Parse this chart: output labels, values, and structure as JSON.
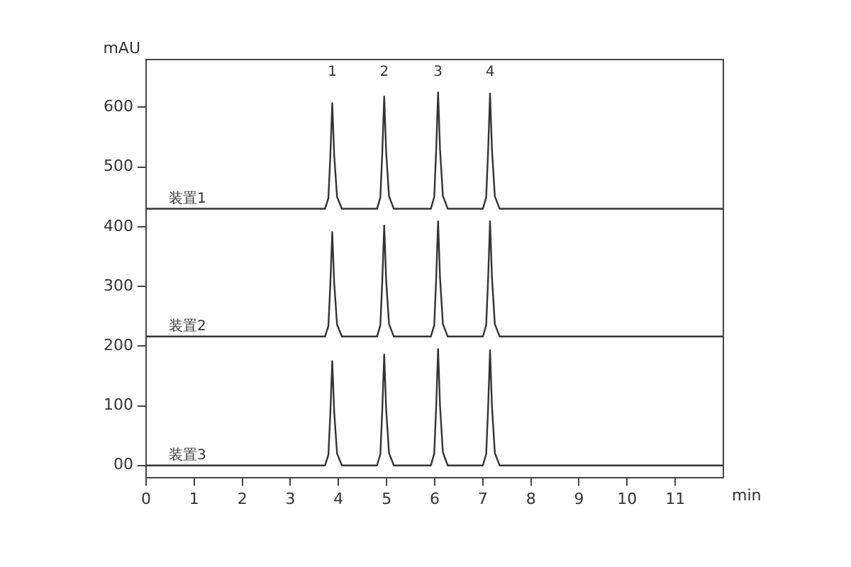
{
  "chart_data": {
    "type": "line",
    "xlabel": "min",
    "ylabel": "mAU",
    "xlim": [
      0,
      12
    ],
    "xticks": [
      0,
      1,
      2,
      3,
      4,
      5,
      6,
      7,
      8,
      9,
      10,
      11
    ],
    "ylim": [
      -20,
      680
    ],
    "yticks": [
      {
        "value": 0,
        "label": "00"
      },
      100,
      200,
      300,
      400,
      500,
      600
    ],
    "grid": false,
    "legend": false,
    "marker": "none",
    "line_style": "solid",
    "annotations": [
      "1",
      "2",
      "3",
      "4"
    ],
    "series": [
      {
        "name": "装置1",
        "color": "#333333",
        "x": [
          0,
          3.72,
          3.79,
          3.83,
          3.87,
          3.91,
          3.97,
          4.07,
          4.8,
          4.87,
          4.91,
          4.95,
          4.99,
          5.05,
          5.15,
          5.92,
          5.99,
          6.03,
          6.07,
          6.11,
          6.17,
          6.27,
          7.0,
          7.07,
          7.11,
          7.15,
          7.19,
          7.25,
          7.35,
          12
        ],
        "values": [
          430,
          430,
          448,
          518,
          607,
          520,
          450,
          430,
          430,
          449,
          524,
          618,
          526,
          451,
          430,
          430,
          450,
          527,
          625,
          530,
          452,
          430,
          430,
          449,
          526,
          623,
          529,
          451,
          430,
          430
        ]
      },
      {
        "name": "装置2",
        "color": "#333333",
        "x": [
          0,
          3.72,
          3.79,
          3.83,
          3.87,
          3.91,
          3.97,
          4.07,
          4.8,
          4.87,
          4.91,
          4.95,
          4.99,
          5.05,
          5.15,
          5.92,
          5.99,
          6.03,
          6.07,
          6.11,
          6.17,
          6.27,
          7.0,
          7.07,
          7.11,
          7.15,
          7.19,
          7.25,
          7.35,
          12
        ],
        "values": [
          216,
          216,
          234,
          303,
          391,
          306,
          236,
          216,
          216,
          235,
          309,
          402,
          311,
          237,
          216,
          216,
          235,
          312,
          409,
          315,
          237,
          216,
          216,
          235,
          312,
          409,
          315,
          237,
          216,
          216
        ]
      },
      {
        "name": "装置3",
        "color": "#333333",
        "x": [
          0,
          3.72,
          3.79,
          3.83,
          3.87,
          3.91,
          3.97,
          4.07,
          4.8,
          4.87,
          4.91,
          4.95,
          4.99,
          5.05,
          5.15,
          5.92,
          5.99,
          6.03,
          6.07,
          6.11,
          6.17,
          6.27,
          7.0,
          7.07,
          7.11,
          7.15,
          7.19,
          7.25,
          7.35,
          12
        ],
        "values": [
          0,
          0,
          18,
          87,
          175,
          90,
          20,
          0,
          0,
          19,
          93,
          186,
          95,
          21,
          0,
          0,
          20,
          97,
          195,
          100,
          22,
          0,
          0,
          19,
          96,
          193,
          99,
          21,
          0,
          0
        ]
      }
    ]
  }
}
